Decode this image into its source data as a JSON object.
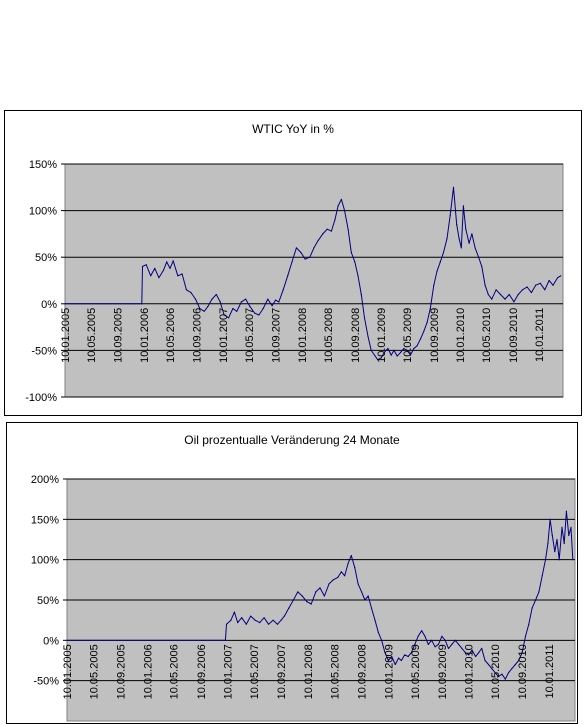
{
  "chart_data": [
    {
      "type": "line",
      "title": "WTIC YoY in %",
      "xlabel": "",
      "ylabel": "",
      "ylim": [
        -100,
        150
      ],
      "yticks": [
        "-100%",
        "-50%",
        "0%",
        "50%",
        "100%",
        "150%"
      ],
      "xticks": [
        "10.01.2005",
        "10.05.2005",
        "10.09.2005",
        "10.01.2006",
        "10.05.2006",
        "10.09.2006",
        "10.01.2007",
        "10.05.2007",
        "10.09.2007",
        "10.01.2008",
        "10.05.2008",
        "10.09.2008",
        "10.01.2009",
        "10.05.2009",
        "10.09.2009",
        "10.01.2010",
        "10.05.2010",
        "10.09.2010",
        "10.01.2011"
      ],
      "grid": true,
      "line_color": "#000080",
      "plot_background": "#c0c0c0",
      "series": [
        {
          "x": [
            "2005-01-10",
            "2005-12-31",
            "2006-01-03",
            "2006-01-20",
            "2006-02-10",
            "2006-03-01",
            "2006-03-20",
            "2006-04-10",
            "2006-04-25",
            "2006-05-10",
            "2006-05-25",
            "2006-06-15",
            "2006-07-05",
            "2006-07-25",
            "2006-08-15",
            "2006-09-05",
            "2006-09-25",
            "2006-10-15",
            "2006-11-01",
            "2006-11-20",
            "2006-12-10",
            "2006-12-28",
            "2007-01-15",
            "2007-02-05",
            "2007-02-25",
            "2007-03-15",
            "2007-04-05",
            "2007-04-25",
            "2007-05-15",
            "2007-06-05",
            "2007-06-25",
            "2007-07-15",
            "2007-08-05",
            "2007-08-25",
            "2007-09-10",
            "2007-09-25",
            "2007-10-15",
            "2007-11-05",
            "2007-11-25",
            "2007-12-15",
            "2008-01-05",
            "2008-01-25",
            "2008-02-15",
            "2008-03-05",
            "2008-03-25",
            "2008-04-15",
            "2008-05-05",
            "2008-05-25",
            "2008-06-10",
            "2008-06-25",
            "2008-07-10",
            "2008-07-25",
            "2008-08-10",
            "2008-08-25",
            "2008-09-10",
            "2008-09-25",
            "2008-10-10",
            "2008-10-25",
            "2008-11-10",
            "2008-11-25",
            "2008-12-10",
            "2008-12-25",
            "2009-01-10",
            "2009-01-25",
            "2009-02-10",
            "2009-02-25",
            "2009-03-10",
            "2009-03-25",
            "2009-04-10",
            "2009-04-25",
            "2009-05-10",
            "2009-05-25",
            "2009-06-10",
            "2009-06-25",
            "2009-07-10",
            "2009-07-25",
            "2009-08-10",
            "2009-08-25",
            "2009-09-10",
            "2009-09-25",
            "2009-10-10",
            "2009-10-25",
            "2009-11-10",
            "2009-11-25",
            "2009-12-10",
            "2009-12-25",
            "2010-01-05",
            "2010-01-15",
            "2010-01-25",
            "2010-02-05",
            "2010-02-20",
            "2010-03-05",
            "2010-03-20",
            "2010-04-05",
            "2010-04-20",
            "2010-05-05",
            "2010-05-20",
            "2010-06-05",
            "2010-06-25",
            "2010-07-15",
            "2010-08-05",
            "2010-08-25",
            "2010-09-15",
            "2010-10-05",
            "2010-10-25",
            "2010-11-15",
            "2010-12-05",
            "2010-12-25",
            "2011-01-15",
            "2011-02-05",
            "2011-02-25",
            "2011-03-15",
            "2011-04-05",
            "2011-04-20"
          ],
          "values": [
            0,
            0,
            40,
            42,
            30,
            38,
            28,
            36,
            45,
            38,
            46,
            30,
            32,
            15,
            12,
            5,
            -5,
            -8,
            -3,
            5,
            10,
            2,
            -12,
            -15,
            -5,
            -8,
            2,
            5,
            -3,
            -10,
            -12,
            -5,
            5,
            -2,
            4,
            2,
            15,
            30,
            45,
            60,
            55,
            48,
            50,
            60,
            68,
            75,
            80,
            78,
            90,
            105,
            112,
            100,
            80,
            55,
            45,
            30,
            10,
            -15,
            -35,
            -50,
            -55,
            -60,
            -58,
            -52,
            -48,
            -55,
            -50,
            -56,
            -52,
            -48,
            -50,
            -55,
            -48,
            -45,
            -38,
            -30,
            -20,
            -5,
            20,
            35,
            45,
            55,
            70,
            95,
            125,
            85,
            70,
            60,
            105,
            80,
            65,
            75,
            60,
            50,
            40,
            20,
            10,
            5,
            15,
            10,
            5,
            10,
            2,
            10,
            15,
            18,
            12,
            20,
            22,
            15,
            25,
            20,
            28,
            30
          ]
        }
      ]
    },
    {
      "type": "line",
      "title": "Oil prozentualle Veränderung 24 Monate",
      "xlabel": "",
      "ylabel": "",
      "ylim": [
        -100,
        200
      ],
      "yticks": [
        "-50%",
        "0%",
        "50%",
        "100%",
        "150%",
        "200%"
      ],
      "xticks": [
        "10.01.2005",
        "10.05.2005",
        "10.09.2005",
        "10.01.2006",
        "10.05.2006",
        "10.09.2006",
        "10.01.2007",
        "10.05.2007",
        "10.09.2007",
        "10.01.2008",
        "10.05.2008",
        "10.09.2008",
        "10.01.2009",
        "10.05.2009",
        "10.09.2009",
        "10.01.2010",
        "10.05.2010",
        "10.09.2010",
        "10.01.2011"
      ],
      "grid": true,
      "line_color": "#000080",
      "plot_background": "#c0c0c0",
      "series": [
        {
          "x": [
            "2005-01-10",
            "2006-12-31",
            "2007-01-05",
            "2007-01-25",
            "2007-02-10",
            "2007-02-25",
            "2007-03-15",
            "2007-04-05",
            "2007-04-25",
            "2007-05-15",
            "2007-06-05",
            "2007-06-25",
            "2007-07-15",
            "2007-08-05",
            "2007-08-25",
            "2007-09-10",
            "2007-09-25",
            "2007-10-15",
            "2007-11-05",
            "2007-11-25",
            "2007-12-15",
            "2008-01-05",
            "2008-01-25",
            "2008-02-15",
            "2008-03-05",
            "2008-03-25",
            "2008-04-15",
            "2008-05-05",
            "2008-05-25",
            "2008-06-10",
            "2008-06-25",
            "2008-07-10",
            "2008-07-25",
            "2008-08-10",
            "2008-08-25",
            "2008-09-10",
            "2008-09-25",
            "2008-10-10",
            "2008-10-25",
            "2008-11-10",
            "2008-11-25",
            "2008-12-10",
            "2008-12-25",
            "2009-01-10",
            "2009-01-25",
            "2009-02-10",
            "2009-02-25",
            "2009-03-10",
            "2009-03-25",
            "2009-04-10",
            "2009-04-25",
            "2009-05-10",
            "2009-05-25",
            "2009-06-10",
            "2009-06-25",
            "2009-07-10",
            "2009-07-25",
            "2009-08-10",
            "2009-08-25",
            "2009-09-10",
            "2009-09-25",
            "2009-10-10",
            "2009-10-25",
            "2009-11-10",
            "2009-11-25",
            "2009-12-10",
            "2009-12-25",
            "2010-01-10",
            "2010-01-25",
            "2010-02-10",
            "2010-02-25",
            "2010-03-10",
            "2010-03-25",
            "2010-04-10",
            "2010-04-25",
            "2010-05-10",
            "2010-05-25",
            "2010-06-10",
            "2010-06-25",
            "2010-07-10",
            "2010-07-25",
            "2010-08-10",
            "2010-08-25",
            "2010-09-10",
            "2010-09-25",
            "2010-10-10",
            "2010-10-25",
            "2010-11-10",
            "2010-11-25",
            "2010-12-10",
            "2010-12-25",
            "2011-01-05",
            "2011-01-15",
            "2011-01-25",
            "2011-02-05",
            "2011-02-15",
            "2011-02-25",
            "2011-03-10",
            "2011-03-20",
            "2011-03-30",
            "2011-04-10",
            "2011-04-20",
            "2011-04-28"
          ],
          "values": [
            0,
            0,
            20,
            25,
            35,
            22,
            28,
            20,
            30,
            25,
            22,
            28,
            20,
            25,
            20,
            25,
            30,
            40,
            50,
            60,
            55,
            48,
            45,
            60,
            65,
            55,
            70,
            75,
            78,
            85,
            80,
            95,
            105,
            90,
            70,
            60,
            50,
            55,
            40,
            25,
            10,
            0,
            -15,
            -25,
            -20,
            -30,
            -22,
            -25,
            -18,
            -20,
            -15,
            -5,
            5,
            12,
            5,
            -5,
            0,
            -8,
            -5,
            5,
            0,
            -10,
            -5,
            0,
            -5,
            -10,
            -15,
            -18,
            -12,
            -20,
            -15,
            -10,
            -25,
            -30,
            -35,
            -40,
            -45,
            -42,
            -48,
            -40,
            -35,
            -30,
            -25,
            -15,
            5,
            20,
            40,
            50,
            60,
            80,
            100,
            120,
            150,
            130,
            110,
            125,
            100,
            140,
            120,
            160,
            130,
            140,
            100
          ]
        }
      ]
    }
  ]
}
